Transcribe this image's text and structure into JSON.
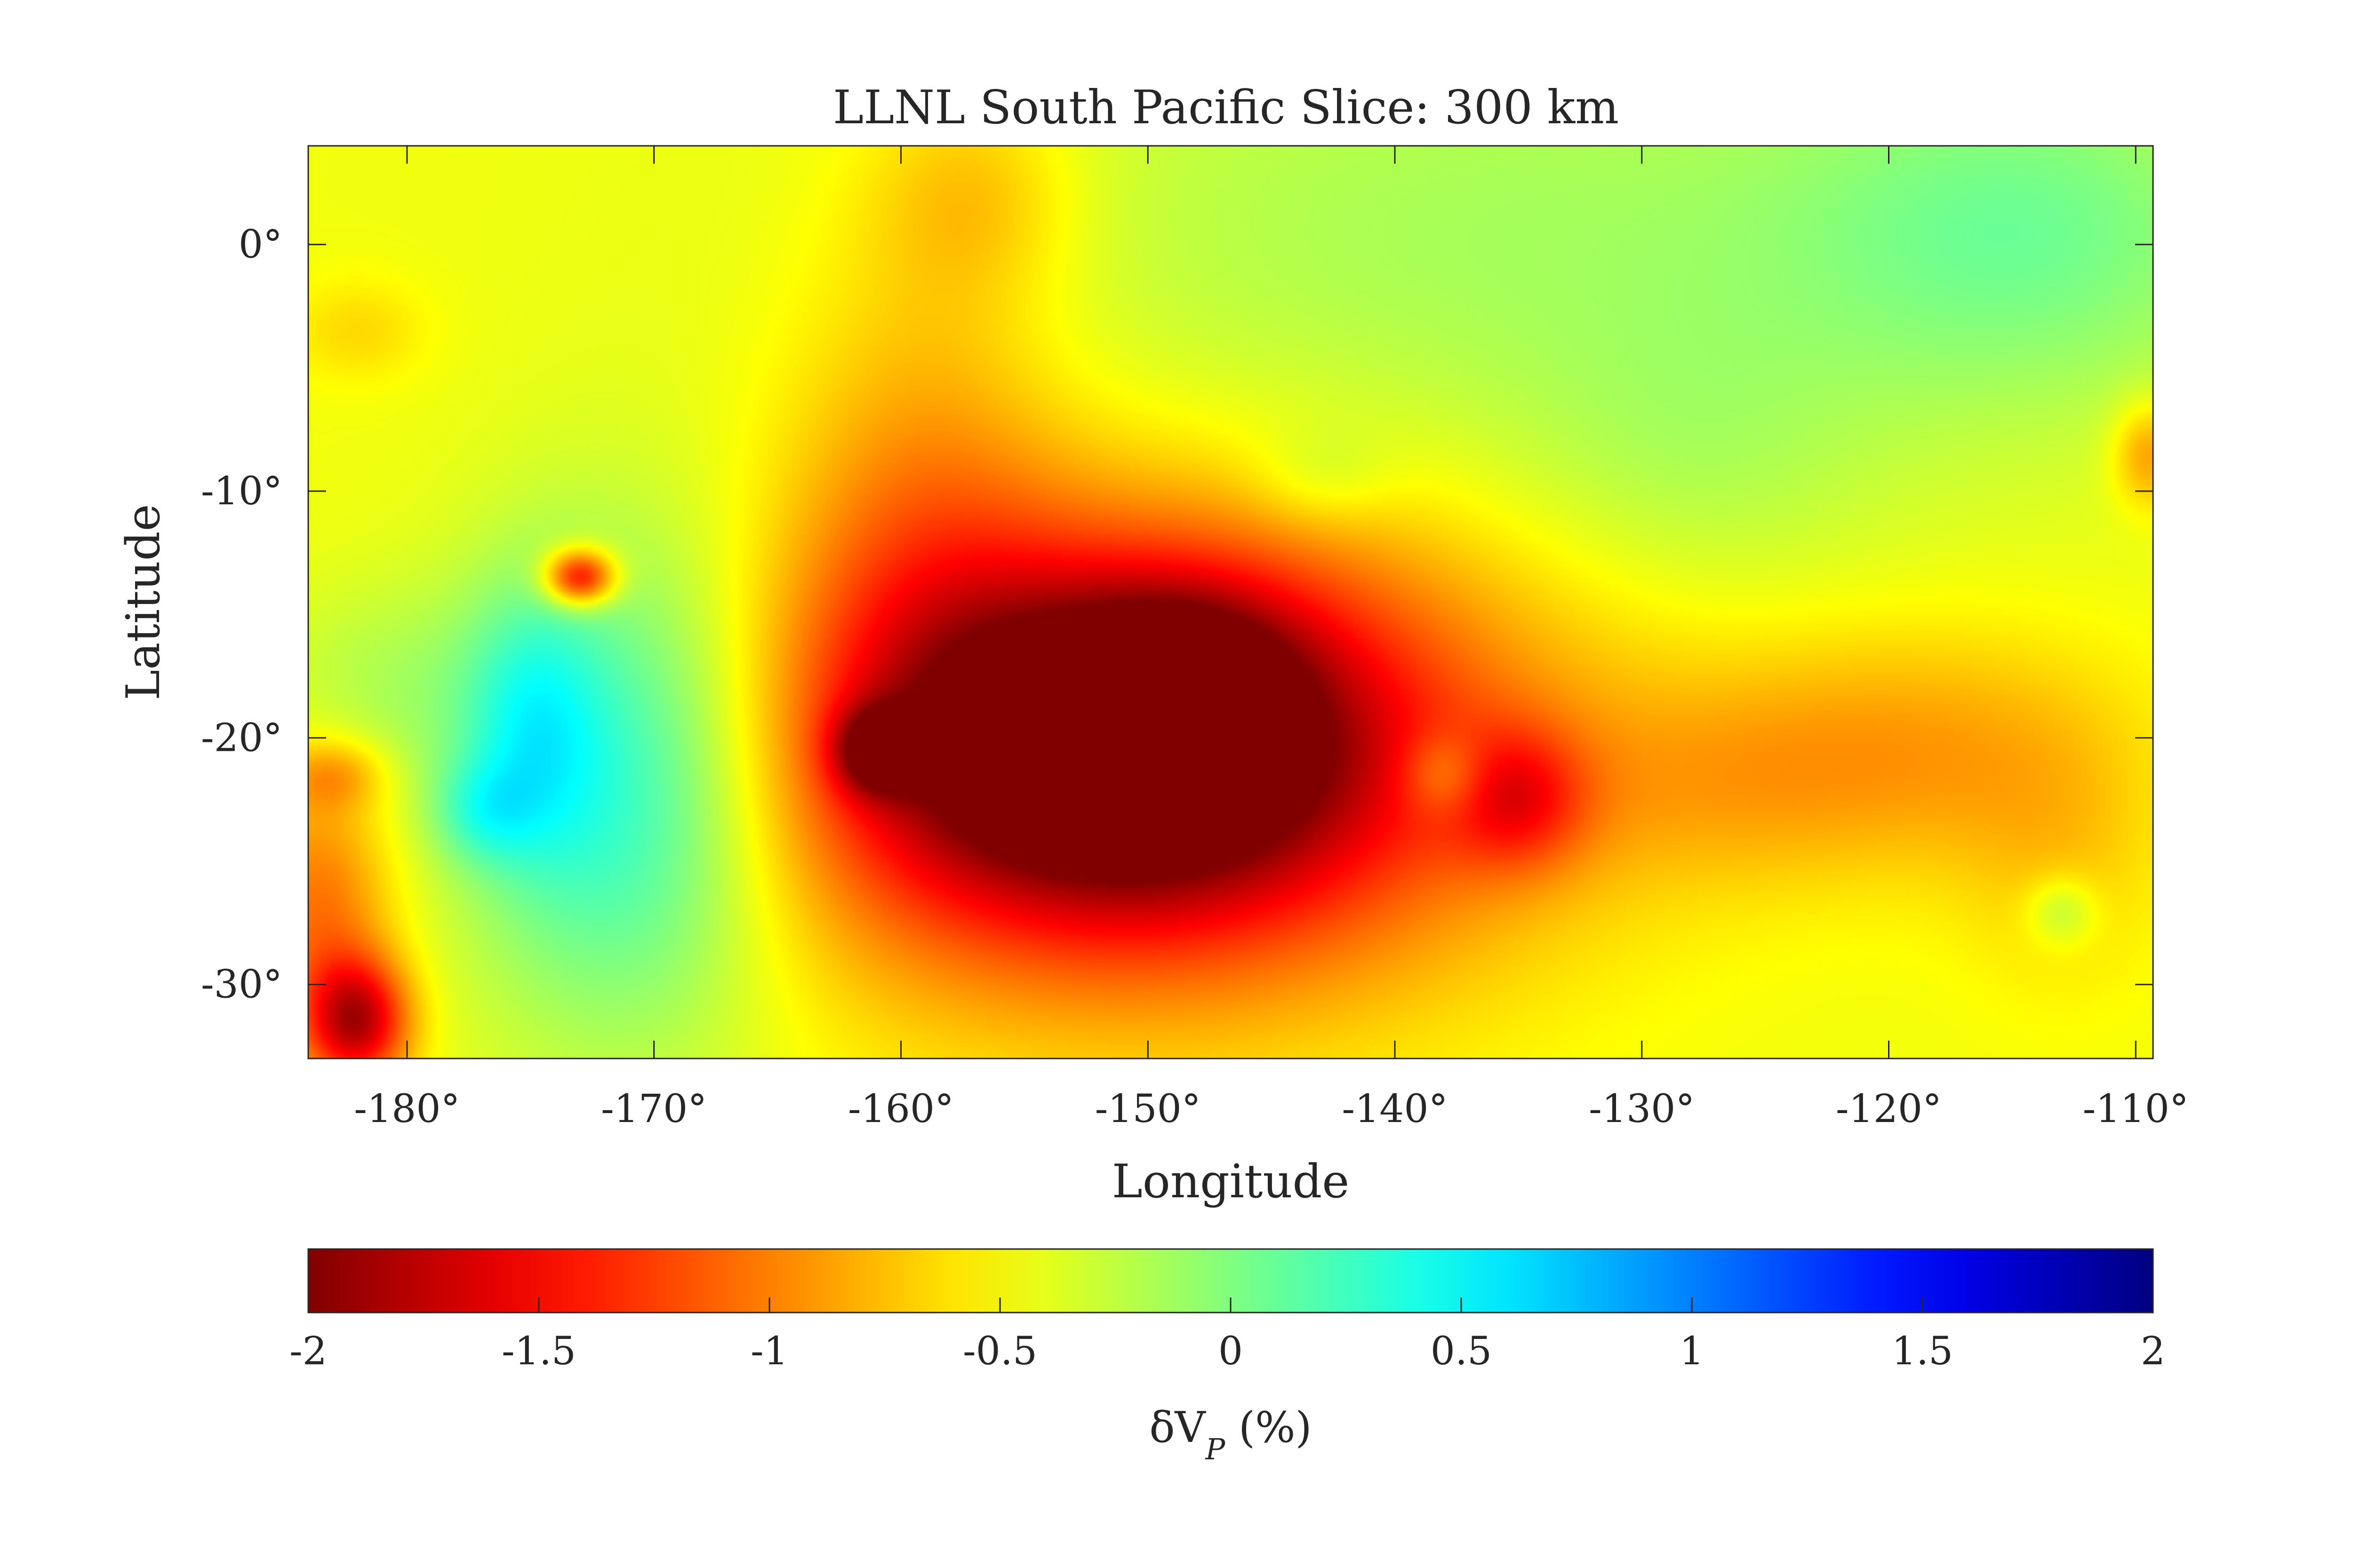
{
  "chart_data": {
    "type": "heatmap",
    "title": "LLNL South Pacific Slice: 300 km",
    "xlabel": "Longitude",
    "ylabel": "Latitude",
    "xlim": [
      -184,
      -109.3
    ],
    "ylim": [
      -33,
      4
    ],
    "xticks": [
      -180,
      -170,
      -160,
      -150,
      -140,
      -130,
      -120,
      -110
    ],
    "xtick_labels": [
      "-180°",
      "-170°",
      "-160°",
      "-150°",
      "-140°",
      "-130°",
      "-120°",
      "-110°"
    ],
    "yticks": [
      0,
      -10,
      -20,
      -30
    ],
    "ytick_labels": [
      "0°",
      "-10°",
      "-20°",
      "-30°"
    ],
    "grid": false,
    "colormap": "jet (reversed)",
    "colorbar": {
      "label": "δV",
      "label_subscript": "P",
      "label_suffix": " (%)",
      "range": [
        -2,
        2
      ],
      "ticks": [
        -2,
        -1.5,
        -1,
        -0.5,
        0,
        0.5,
        1,
        1.5,
        2
      ],
      "tick_labels": [
        "-2",
        "-1.5",
        "-1",
        "-0.5",
        "0",
        "0.5",
        "1",
        "1.5",
        "2"
      ],
      "placement": "bottom"
    },
    "background_value": -0.45,
    "anomalies": [
      {
        "lon": -150.5,
        "lat": -20.5,
        "value": -1.6,
        "sx": 10.5,
        "sy": 6.5
      },
      {
        "lon": -151,
        "lat": -20.5,
        "value": -0.9,
        "sx": 6,
        "sy": 4.2
      },
      {
        "lon": -148.5,
        "lat": -17.5,
        "value": -0.5,
        "sx": 3,
        "sy": 2.5
      },
      {
        "lon": -161,
        "lat": -20.5,
        "value": -0.9,
        "sx": 1.2,
        "sy": 1.2
      },
      {
        "lon": -135,
        "lat": -22.5,
        "value": -0.6,
        "sx": 2,
        "sy": 2
      },
      {
        "lon": -159,
        "lat": -10,
        "value": -0.4,
        "sx": 4,
        "sy": 8
      },
      {
        "lon": -157,
        "lat": 2,
        "value": -0.3,
        "sx": 3,
        "sy": 3
      },
      {
        "lon": -119,
        "lat": -20.5,
        "value": -0.4,
        "sx": 6,
        "sy": 3.5
      },
      {
        "lon": -127,
        "lat": -22,
        "value": -0.2,
        "sx": 5,
        "sy": 3
      },
      {
        "lon": -113,
        "lat": -25,
        "value": -0.2,
        "sx": 3,
        "sy": 4
      },
      {
        "lon": -135,
        "lat": 0,
        "value": 0.3,
        "sx": 16,
        "sy": 8
      },
      {
        "lon": -114,
        "lat": 0.5,
        "value": 0.4,
        "sx": 7,
        "sy": 5
      },
      {
        "lon": -128,
        "lat": -9,
        "value": 0.15,
        "sx": 5,
        "sy": 4
      },
      {
        "lon": -143,
        "lat": -9.5,
        "value": 0.2,
        "sx": 2,
        "sy": 1.5
      },
      {
        "lon": -171,
        "lat": -22,
        "value": 0.9,
        "sx": 4.5,
        "sy": 7
      },
      {
        "lon": -175,
        "lat": -19.5,
        "value": 0.5,
        "sx": 2,
        "sy": 4
      },
      {
        "lon": -177,
        "lat": -23,
        "value": 0.4,
        "sx": 1.5,
        "sy": 1.5
      },
      {
        "lon": -181,
        "lat": -18,
        "value": 0.25,
        "sx": 3.5,
        "sy": 3
      },
      {
        "lon": -173,
        "lat": -13.5,
        "value": -1.3,
        "sx": 1,
        "sy": 0.8
      },
      {
        "lon": -183.5,
        "lat": -27,
        "value": -0.6,
        "sx": 2,
        "sy": 4
      },
      {
        "lon": -182,
        "lat": -31.5,
        "value": -1.2,
        "sx": 1.5,
        "sy": 1.8
      },
      {
        "lon": -183,
        "lat": -21.5,
        "value": -0.4,
        "sx": 1.5,
        "sy": 1
      },
      {
        "lon": -182,
        "lat": -3.5,
        "value": -0.2,
        "sx": 2,
        "sy": 1.5
      },
      {
        "lon": -138,
        "lat": -21.5,
        "value": 0.4,
        "sx": 1.2,
        "sy": 1.2
      },
      {
        "lon": -113,
        "lat": -27,
        "value": 0.35,
        "sx": 1,
        "sy": 1
      },
      {
        "lon": -109.5,
        "lat": -8.5,
        "value": -0.5,
        "sx": 1,
        "sy": 1.5
      }
    ]
  }
}
